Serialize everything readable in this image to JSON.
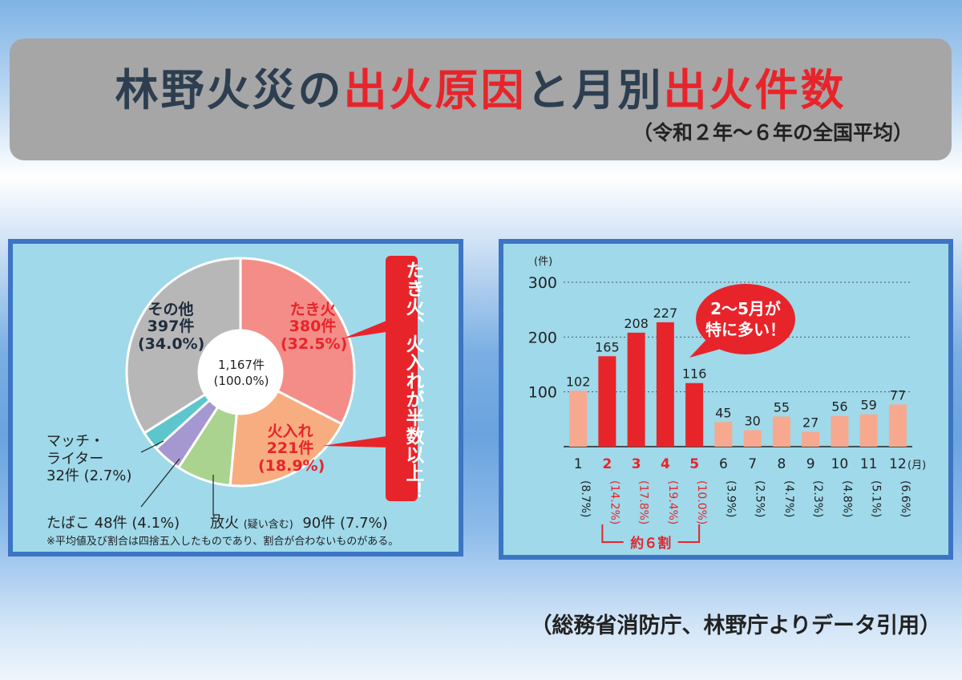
{
  "header": {
    "title_part1": "林野火災の",
    "title_part2": "出火原因",
    "title_part3": "と月別",
    "title_part4": "出火件数",
    "subtitle": "（令和２年～６年の全国平均）"
  },
  "source": "（総務省消防庁、林野庁よりデータ引用）",
  "chart_data": [
    {
      "type": "pie",
      "center_label_1": "1,167件",
      "center_label_2": "(100.0%)",
      "slices": [
        {
          "label": "たき火",
          "count": "380件",
          "pct": "(32.5%)",
          "value": 380,
          "color": "#f48d88"
        },
        {
          "label": "火入れ",
          "count": "221件",
          "pct": "(18.9%)",
          "value": 221,
          "color": "#f8ad80"
        },
        {
          "label": "放火",
          "label_small": "(疑い含む)",
          "count": "90件",
          "pct": "(7.7%)",
          "value": 90,
          "color": "#a9d38e"
        },
        {
          "label": "たばこ",
          "count": "48件",
          "pct": "(4.1%)",
          "value": 48,
          "color": "#a597d0"
        },
        {
          "label_1": "マッチ・",
          "label_2": "ライター",
          "count": "32件",
          "pct": "(2.7%)",
          "value": 32,
          "color": "#5cc6cc"
        },
        {
          "label": "その他",
          "count": "397件",
          "pct": "(34.0%)",
          "value": 397,
          "color": "#b7b7b7"
        }
      ],
      "callout": "たき火、火入れが半数以上！",
      "note": "※平均値及び割合は四捨五入したものであり、割合が合わないものがある。"
    },
    {
      "type": "bar",
      "y_unit": "(件)",
      "x_unit": "(月)",
      "ylim": [
        0,
        300
      ],
      "yticks": [
        100,
        200,
        300
      ],
      "categories": [
        "1",
        "2",
        "3",
        "4",
        "5",
        "6",
        "7",
        "8",
        "9",
        "10",
        "11",
        "12"
      ],
      "values": [
        102,
        165,
        208,
        227,
        116,
        45,
        30,
        55,
        27,
        56,
        59,
        77
      ],
      "percentages": [
        "(8.7%)",
        "(14.2%)",
        "(17.8%)",
        "(19.4%)",
        "(10.0%)",
        "(3.9%)",
        "(2.5%)",
        "(4.7%)",
        "(2.3%)",
        "(4.8%)",
        "(5.1%)",
        "(6.6%)"
      ],
      "highlight_months": [
        "2",
        "3",
        "4",
        "5"
      ],
      "highlight_color": "#e8242b",
      "normal_color": "#f7a98f",
      "callout_1": "2～5月が",
      "callout_2": "特に多い！",
      "bracket_label": "約６割"
    }
  ]
}
